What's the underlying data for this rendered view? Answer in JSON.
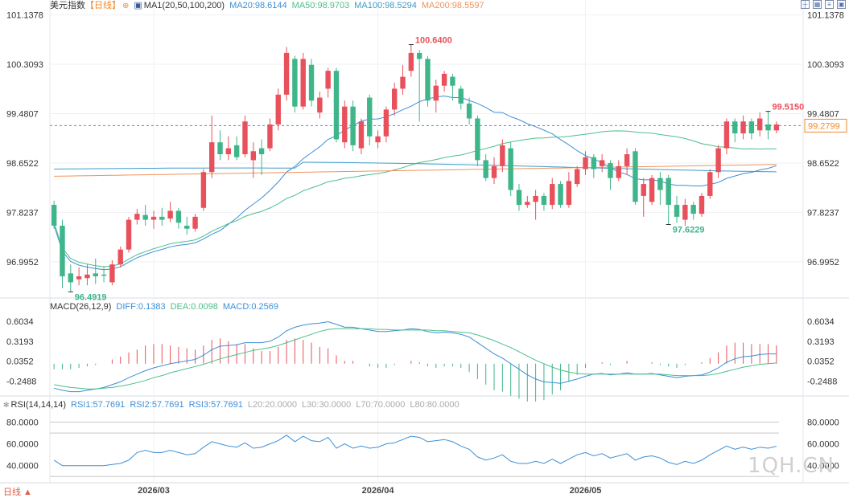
{
  "main_header": {
    "symbol": "美元指数",
    "period": "【日线】",
    "settings_icon": "gear-icon",
    "ma_label": "MA1(20,50,100,200)",
    "ma20": "MA20:98.6144",
    "ma50": "MA50:98.9703",
    "ma100": "MA100:98.5294",
    "ma200": "MA200:98.5597"
  },
  "macd_header": {
    "label": "MACD(26,12,9)",
    "diff": "DIFF:0.1383",
    "dea": "DEA:0.0098",
    "macd": "MACD:0.2569"
  },
  "rsi_header": {
    "label": "RSI(14,14,14)",
    "rsi1": "RSI1:57.7691",
    "rsi2": "RSI2:57.7691",
    "rsi3": "RSI3:57.7691",
    "l20": "L20:20.0000",
    "l30": "L30:30.0000",
    "l70": "L70:70.0000",
    "l80": "L80:80.0000"
  },
  "toolbar": [
    "crosshair-icon",
    "layout-icon",
    "indicator-icon",
    "expand-icon"
  ],
  "footer": {
    "period_label": "日线 ▲"
  },
  "watermark": "1QH.CN",
  "colors": {
    "up": "#e8505b",
    "down": "#3fb58a",
    "ma20": "#3d8fd8",
    "ma50": "#4cbf8a",
    "ma100": "#3d9cc9",
    "ma200": "#f0925a",
    "current_price_bg": "#ffffff",
    "current_price_text": "#f08a2a"
  },
  "chart_data": [
    {
      "type": "candlestick",
      "title": "美元指数",
      "y_ticks": [
        "101.1378",
        "100.3093",
        "99.4807",
        "98.6522",
        "97.8237",
        "96.9952"
      ],
      "ylim": [
        96.4,
        101.2
      ],
      "x_ticks": [
        "2026/03",
        "2026/04",
        "2026/05"
      ],
      "annotations": {
        "high": "100.6400",
        "low": "96.4919",
        "swing_low": "97.6229",
        "recent_high": "99.5150",
        "current_price": "99.2799"
      },
      "candles": [
        [
          97.95,
          97.6,
          98.02,
          97.55
        ],
        [
          97.6,
          96.75,
          97.7,
          96.55
        ],
        [
          96.8,
          96.65,
          96.95,
          96.49
        ],
        [
          96.7,
          96.75,
          96.9,
          96.6
        ],
        [
          96.72,
          96.78,
          96.95,
          96.6
        ],
        [
          96.8,
          96.75,
          97.05,
          96.62
        ],
        [
          96.78,
          96.76,
          96.92,
          96.65
        ],
        [
          96.65,
          96.95,
          97.02,
          96.6
        ],
        [
          96.95,
          97.2,
          97.25,
          96.9
        ],
        [
          97.2,
          97.7,
          97.75,
          97.15
        ],
        [
          97.7,
          97.8,
          97.88,
          97.62
        ],
        [
          97.78,
          97.7,
          97.95,
          97.6
        ],
        [
          97.7,
          97.75,
          97.85,
          97.55
        ],
        [
          97.75,
          97.7,
          97.9,
          97.6
        ],
        [
          97.72,
          97.85,
          98.0,
          97.66
        ],
        [
          97.85,
          97.65,
          97.9,
          97.55
        ],
        [
          97.6,
          97.55,
          97.75,
          97.45
        ],
        [
          97.55,
          97.75,
          97.8,
          97.5
        ],
        [
          97.9,
          98.5,
          98.55,
          97.85
        ],
        [
          98.5,
          99.0,
          99.45,
          98.4
        ],
        [
          99.0,
          98.8,
          99.2,
          98.7
        ],
        [
          98.8,
          98.9,
          99.1,
          98.7
        ],
        [
          98.95,
          98.75,
          99.1,
          98.7
        ],
        [
          98.8,
          99.35,
          99.45,
          98.75
        ],
        [
          98.7,
          98.85,
          99.0,
          98.4
        ],
        [
          98.9,
          98.8,
          99.05,
          98.45
        ],
        [
          98.9,
          99.3,
          99.4,
          98.85
        ],
        [
          99.3,
          99.8,
          99.9,
          99.2
        ],
        [
          99.8,
          100.5,
          100.6,
          99.7
        ],
        [
          100.4,
          99.6,
          100.45,
          99.5
        ],
        [
          99.6,
          100.4,
          100.5,
          99.55
        ],
        [
          100.3,
          99.7,
          100.4,
          99.6
        ],
        [
          99.5,
          99.75,
          99.85,
          99.4
        ],
        [
          99.9,
          100.2,
          100.25,
          99.75
        ],
        [
          100.2,
          99.05,
          100.25,
          99.0
        ],
        [
          99.0,
          99.6,
          99.7,
          98.9
        ],
        [
          99.6,
          98.95,
          99.7,
          98.85
        ],
        [
          98.9,
          99.35,
          99.4,
          98.8
        ],
        [
          99.75,
          99.1,
          99.8,
          98.95
        ],
        [
          99.0,
          99.1,
          99.2,
          98.9
        ],
        [
          99.1,
          99.55,
          99.6,
          99.0
        ],
        [
          99.55,
          99.9,
          100.0,
          99.45
        ],
        [
          99.9,
          100.1,
          100.3,
          99.8
        ],
        [
          100.2,
          100.5,
          100.64,
          100.1
        ],
        [
          100.5,
          100.4,
          100.55,
          99.35
        ],
        [
          100.4,
          99.7,
          100.45,
          99.6
        ],
        [
          99.7,
          99.95,
          100.05,
          99.5
        ],
        [
          99.95,
          100.15,
          100.2,
          99.85
        ],
        [
          100.1,
          99.95,
          100.15,
          99.7
        ],
        [
          99.9,
          99.65,
          99.95,
          99.55
        ],
        [
          99.65,
          99.4,
          99.75,
          99.3
        ],
        [
          99.4,
          98.7,
          99.45,
          98.6
        ],
        [
          98.7,
          98.4,
          98.8,
          98.35
        ],
        [
          98.4,
          98.6,
          98.75,
          98.3
        ],
        [
          98.6,
          98.95,
          99.05,
          98.5
        ],
        [
          98.9,
          98.2,
          99.0,
          98.1
        ],
        [
          98.2,
          97.95,
          98.3,
          97.85
        ],
        [
          97.95,
          98.0,
          98.1,
          97.9
        ],
        [
          98.0,
          98.1,
          98.2,
          97.7
        ],
        [
          98.1,
          97.95,
          98.15,
          97.85
        ],
        [
          97.95,
          98.3,
          98.4,
          97.88
        ],
        [
          98.3,
          97.95,
          98.35,
          97.9
        ],
        [
          97.95,
          98.35,
          98.5,
          97.9
        ],
        [
          98.3,
          98.55,
          98.6,
          98.25
        ],
        [
          98.55,
          98.75,
          98.85,
          98.45
        ],
        [
          98.75,
          98.55,
          98.8,
          98.4
        ],
        [
          98.6,
          98.7,
          98.8,
          98.5
        ],
        [
          98.65,
          98.4,
          98.7,
          98.2
        ],
        [
          98.4,
          98.6,
          98.7,
          98.35
        ],
        [
          98.6,
          98.8,
          98.9,
          98.45
        ],
        [
          98.85,
          98.0,
          98.9,
          97.95
        ],
        [
          98.1,
          98.3,
          98.4,
          97.75
        ],
        [
          98.0,
          98.4,
          98.45,
          97.95
        ],
        [
          98.4,
          98.2,
          98.5,
          97.95
        ],
        [
          98.4,
          97.95,
          98.45,
          97.62
        ],
        [
          97.95,
          97.75,
          98.1,
          97.65
        ],
        [
          97.7,
          97.95,
          98.05,
          97.6
        ],
        [
          97.95,
          97.8,
          98.0,
          97.7
        ],
        [
          97.8,
          98.1,
          98.15,
          97.75
        ],
        [
          98.1,
          98.5,
          98.55,
          98.05
        ],
        [
          98.5,
          98.9,
          98.95,
          98.4
        ],
        [
          98.9,
          99.35,
          99.4,
          98.8
        ],
        [
          99.35,
          99.15,
          99.4,
          99.0
        ],
        [
          99.15,
          99.35,
          99.45,
          99.05
        ],
        [
          99.35,
          99.15,
          99.4,
          99.05
        ],
        [
          99.2,
          99.4,
          99.5,
          99.1
        ],
        [
          99.3,
          99.2,
          99.52,
          99.05
        ],
        [
          99.2,
          99.3,
          99.35,
          99.15
        ]
      ]
    },
    {
      "type": "line",
      "title": "MACD(26,12,9)",
      "y_ticks": [
        "0.6034",
        "0.3193",
        "0.0352",
        "-0.2488"
      ],
      "ylim": [
        -0.45,
        0.72
      ],
      "series": [
        {
          "name": "DIFF",
          "values": [
            -0.35,
            -0.38,
            -0.4,
            -0.4,
            -0.38,
            -0.36,
            -0.34,
            -0.3,
            -0.26,
            -0.2,
            -0.15,
            -0.1,
            -0.06,
            -0.03,
            0.0,
            0.02,
            0.04,
            0.06,
            0.12,
            0.2,
            0.25,
            0.26,
            0.27,
            0.3,
            0.3,
            0.3,
            0.32,
            0.38,
            0.47,
            0.52,
            0.55,
            0.57,
            0.58,
            0.6,
            0.56,
            0.52,
            0.52,
            0.5,
            0.48,
            0.46,
            0.46,
            0.47,
            0.48,
            0.5,
            0.49,
            0.46,
            0.44,
            0.45,
            0.44,
            0.42,
            0.38,
            0.3,
            0.22,
            0.14,
            0.08,
            0.0,
            -0.08,
            -0.16,
            -0.22,
            -0.26,
            -0.27,
            -0.28,
            -0.25,
            -0.22,
            -0.18,
            -0.15,
            -0.14,
            -0.16,
            -0.15,
            -0.13,
            -0.15,
            -0.15,
            -0.14,
            -0.16,
            -0.18,
            -0.2,
            -0.18,
            -0.17,
            -0.16,
            -0.12,
            -0.06,
            0.02,
            0.07,
            0.1,
            0.11,
            0.13,
            0.14,
            0.14
          ]
        },
        {
          "name": "DEA",
          "values": [
            -0.3,
            -0.32,
            -0.34,
            -0.35,
            -0.36,
            -0.36,
            -0.35,
            -0.34,
            -0.32,
            -0.3,
            -0.27,
            -0.24,
            -0.2,
            -0.17,
            -0.13,
            -0.1,
            -0.07,
            -0.04,
            -0.01,
            0.03,
            0.07,
            0.1,
            0.13,
            0.16,
            0.19,
            0.21,
            0.23,
            0.26,
            0.3,
            0.34,
            0.38,
            0.42,
            0.46,
            0.49,
            0.5,
            0.5,
            0.5,
            0.5,
            0.5,
            0.49,
            0.49,
            0.48,
            0.48,
            0.48,
            0.48,
            0.48,
            0.47,
            0.47,
            0.46,
            0.45,
            0.44,
            0.41,
            0.37,
            0.33,
            0.28,
            0.23,
            0.17,
            0.11,
            0.05,
            0.0,
            -0.05,
            -0.09,
            -0.12,
            -0.14,
            -0.15,
            -0.15,
            -0.15,
            -0.15,
            -0.15,
            -0.15,
            -0.15,
            -0.15,
            -0.15,
            -0.15,
            -0.16,
            -0.17,
            -0.17,
            -0.17,
            -0.17,
            -0.16,
            -0.14,
            -0.11,
            -0.08,
            -0.05,
            -0.03,
            -0.01,
            0.0,
            0.01
          ]
        }
      ],
      "histogram_name": "MACD",
      "histogram": [
        -0.08,
        -0.08,
        -0.08,
        -0.06,
        -0.04,
        -0.02,
        0.0,
        0.06,
        0.1,
        0.16,
        0.2,
        0.26,
        0.28,
        0.28,
        0.26,
        0.24,
        0.22,
        0.2,
        0.26,
        0.34,
        0.36,
        0.32,
        0.28,
        0.28,
        0.22,
        0.18,
        0.18,
        0.24,
        0.34,
        0.36,
        0.34,
        0.3,
        0.24,
        0.22,
        0.12,
        0.04,
        0.04,
        0.0,
        -0.04,
        -0.06,
        -0.06,
        -0.02,
        0.0,
        0.04,
        0.02,
        -0.04,
        -0.06,
        -0.04,
        -0.04,
        -0.06,
        -0.12,
        -0.22,
        -0.3,
        -0.38,
        -0.4,
        -0.46,
        -0.5,
        -0.54,
        -0.54,
        -0.52,
        -0.44,
        -0.38,
        -0.26,
        -0.16,
        -0.06,
        0.0,
        0.02,
        -0.02,
        0.0,
        0.04,
        0.0,
        0.0,
        0.02,
        -0.02,
        -0.04,
        -0.06,
        -0.02,
        0.0,
        0.02,
        0.08,
        0.16,
        0.26,
        0.3,
        0.3,
        0.28,
        0.28,
        0.28,
        0.26
      ]
    },
    {
      "type": "line",
      "title": "RSI(14,14,14)",
      "y_ticks": [
        "80.0000",
        "60.0000",
        "40.0000"
      ],
      "ylim": [
        25,
        90
      ],
      "reference_lines": [
        20,
        30,
        70,
        80
      ],
      "series": [
        {
          "name": "RSI1",
          "values": [
            45,
            40,
            40,
            40,
            40,
            40,
            40,
            41,
            42,
            45,
            52,
            54,
            52,
            52,
            54,
            52,
            50,
            51,
            57,
            62,
            60,
            58,
            57,
            61,
            56,
            57,
            60,
            63,
            68,
            62,
            67,
            63,
            62,
            66,
            56,
            60,
            56,
            58,
            56,
            57,
            60,
            61,
            64,
            67,
            66,
            62,
            63,
            64,
            62,
            58,
            55,
            48,
            45,
            47,
            50,
            44,
            42,
            42,
            44,
            42,
            46,
            42,
            46,
            50,
            52,
            49,
            51,
            47,
            49,
            51,
            45,
            48,
            49,
            47,
            43,
            41,
            44,
            42,
            45,
            50,
            54,
            58,
            55,
            57,
            55,
            57,
            56,
            57.77
          ]
        }
      ]
    }
  ]
}
